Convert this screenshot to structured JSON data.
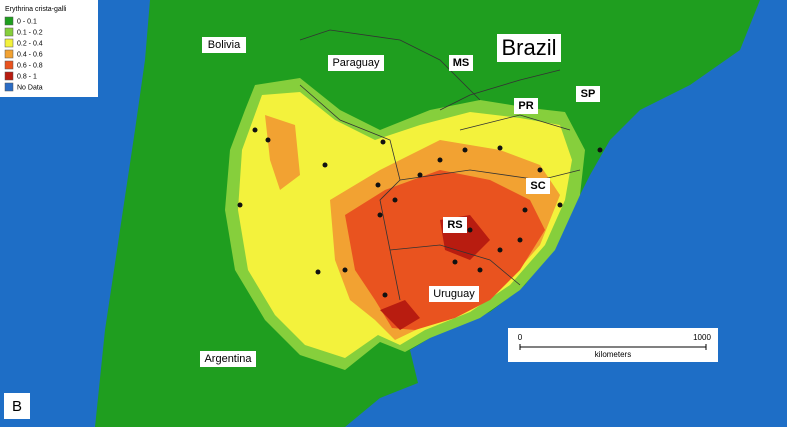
{
  "legend": {
    "title": "Erythrina crista-galli",
    "items": [
      {
        "label": "0 - 0.1",
        "color": "#1f9e1f"
      },
      {
        "label": "0.1 - 0.2",
        "color": "#86cf3c"
      },
      {
        "label": "0.2 - 0.4",
        "color": "#f3f23c"
      },
      {
        "label": "0.4 - 0.6",
        "color": "#f2a232"
      },
      {
        "label": "0.6 - 0.8",
        "color": "#e9531f"
      },
      {
        "label": "0.8 - 1",
        "color": "#b81c10"
      },
      {
        "label": "No Data",
        "color": "#2a6cc4"
      }
    ]
  },
  "labels": {
    "bolivia": "Bolivia",
    "paraguay": "Paraguay",
    "ms": "MS",
    "brazil": "Brazil",
    "pr": "PR",
    "sp": "SP",
    "sc": "SC",
    "rs": "RS",
    "uruguay": "Uruguay",
    "argentina": "Argentina"
  },
  "scale_bar": {
    "start": "0",
    "end": "1000",
    "unit": "kilometers"
  },
  "panel_label": "B"
}
